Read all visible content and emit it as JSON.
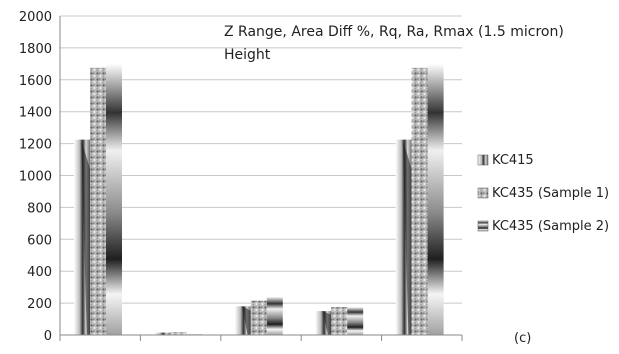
{
  "chart_data": {
    "type": "bar",
    "title_lines": [
      "Z Range, Area Diff %, Rq, Ra, Rmax (1.5 micron)",
      "Height"
    ],
    "xlabel": "",
    "ylabel": "",
    "categories": [
      "",
      "",
      "",
      "",
      ""
    ],
    "ylim": [
      0,
      2000
    ],
    "yticks": [
      0,
      200,
      400,
      600,
      800,
      1000,
      1200,
      1400,
      1600,
      1800,
      2000
    ],
    "grid": true,
    "legend_position": "right",
    "annotation": "(c)",
    "series": [
      {
        "name": "KC415",
        "values": [
          1225,
          15,
          180,
          150,
          1225
        ]
      },
      {
        "name": "KC435 (Sample 1)",
        "values": [
          1675,
          18,
          215,
          175,
          1675
        ]
      },
      {
        "name": "KC435 (Sample 2)",
        "values": [
          1700,
          5,
          240,
          175,
          1700
        ]
      }
    ]
  },
  "colors": {
    "grid": "#c8c8c8",
    "axis": "#888888"
  }
}
